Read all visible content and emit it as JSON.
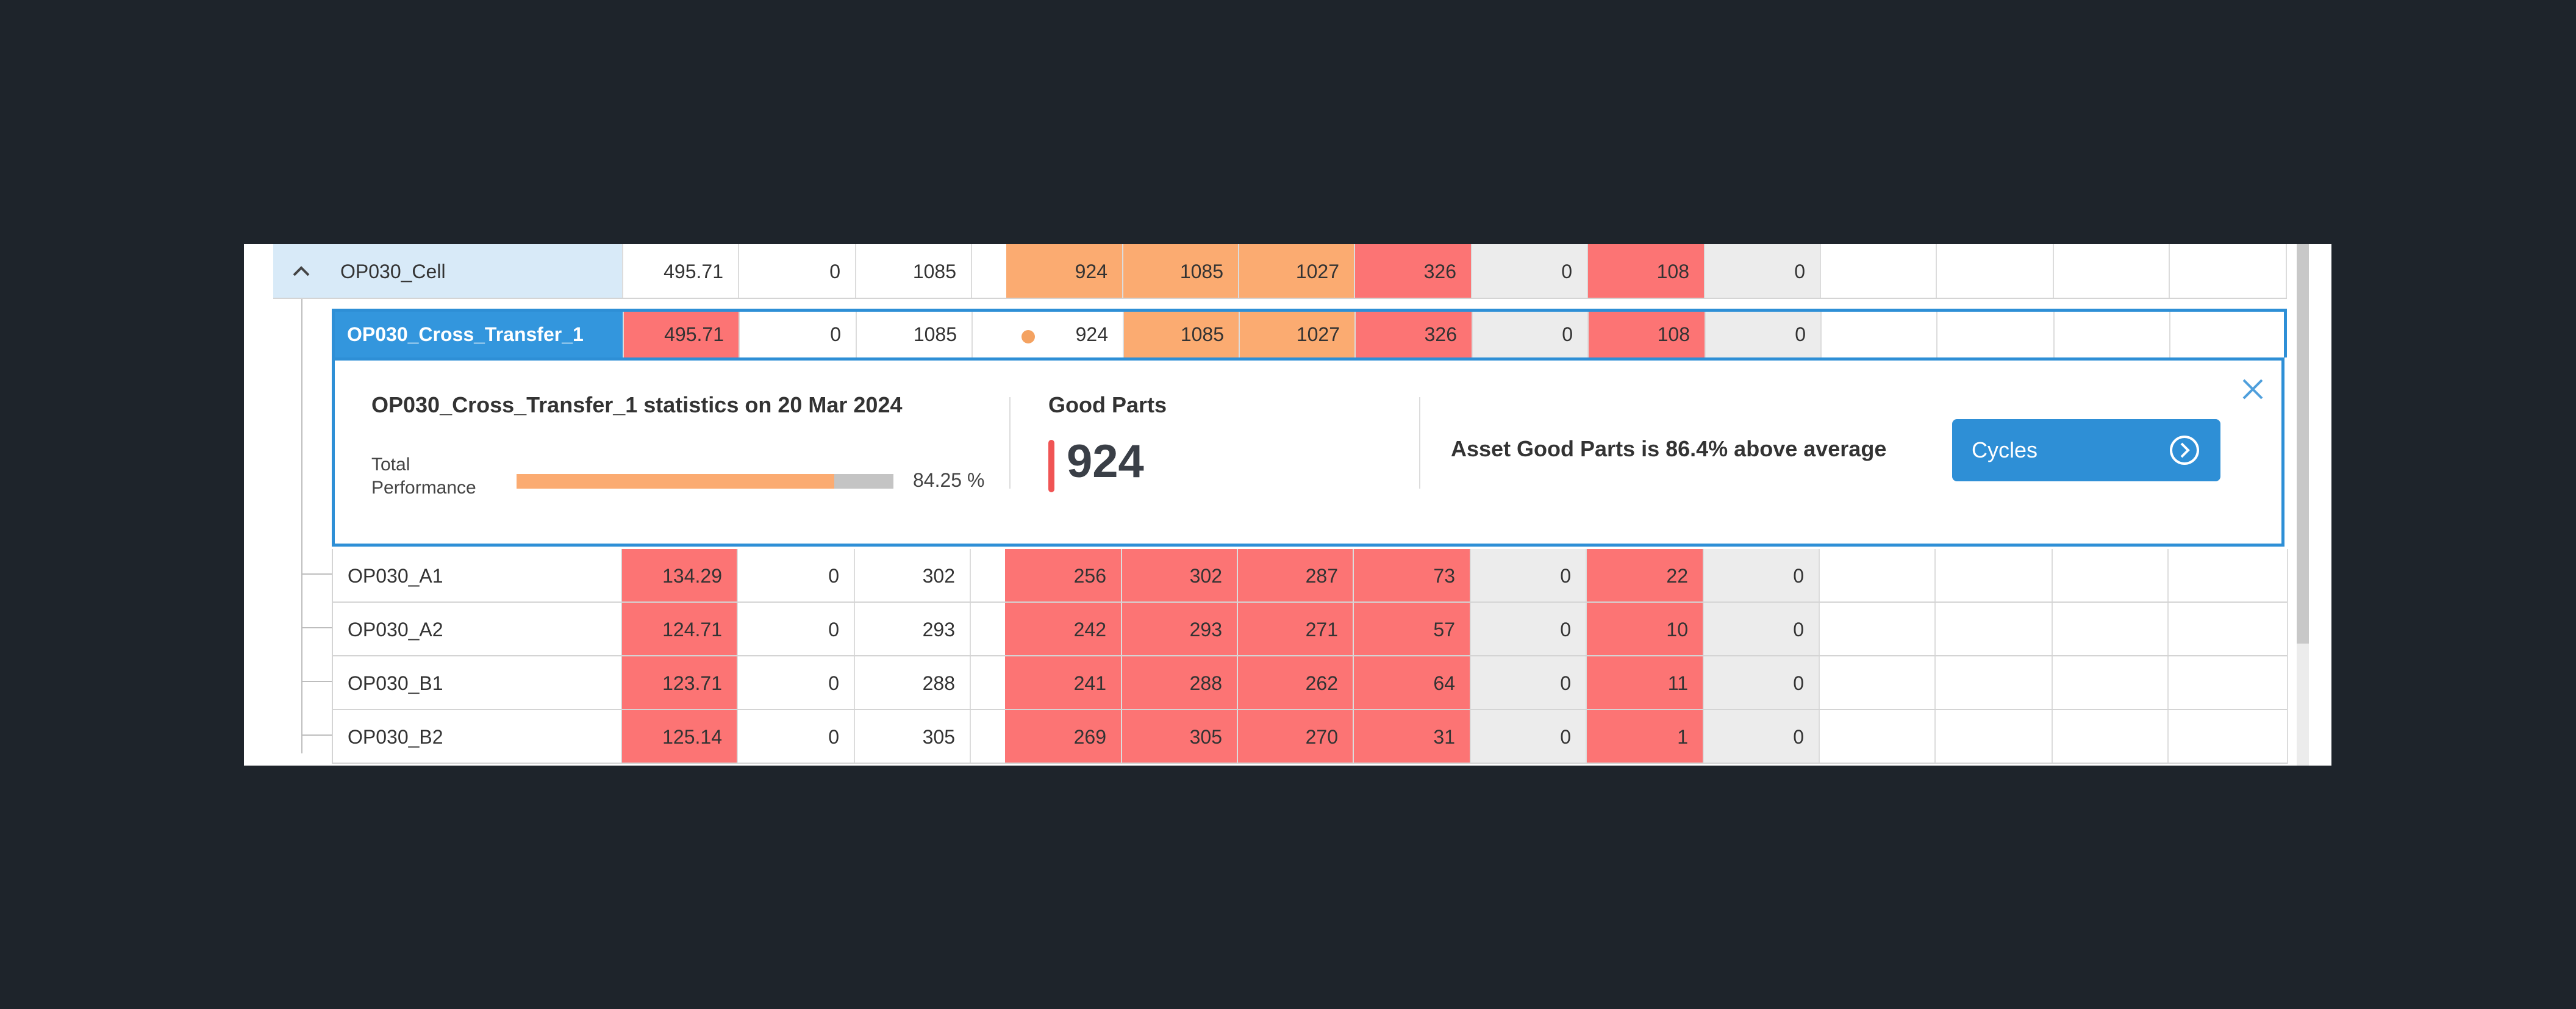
{
  "rows": [
    {
      "name": "OP030_Cell",
      "values": [
        "495.71",
        "0",
        "1085",
        "924",
        "1085",
        "1027",
        "326",
        "0",
        "108",
        "0",
        "",
        "",
        "",
        ""
      ]
    },
    {
      "name": "OP030_Cross_Transfer_1",
      "values": [
        "495.71",
        "0",
        "1085",
        "924",
        "1085",
        "1027",
        "326",
        "0",
        "108",
        "0",
        "",
        "",
        "",
        ""
      ]
    },
    {
      "name": "OP030_A1",
      "values": [
        "134.29",
        "0",
        "302",
        "256",
        "302",
        "287",
        "73",
        "0",
        "22",
        "0",
        "",
        "",
        "",
        ""
      ]
    },
    {
      "name": "OP030_A2",
      "values": [
        "124.71",
        "0",
        "293",
        "242",
        "293",
        "271",
        "57",
        "0",
        "10",
        "0",
        "",
        "",
        "",
        ""
      ]
    },
    {
      "name": "OP030_B1",
      "values": [
        "123.71",
        "0",
        "288",
        "241",
        "288",
        "262",
        "64",
        "0",
        "11",
        "0",
        "",
        "",
        "",
        ""
      ]
    },
    {
      "name": "OP030_B2",
      "values": [
        "125.14",
        "0",
        "305",
        "269",
        "305",
        "270",
        "31",
        "0",
        "1",
        "0",
        "",
        "",
        "",
        ""
      ]
    }
  ],
  "detail": {
    "title": "OP030_Cross_Transfer_1 statistics on 20 Mar 2024",
    "total_performance_label_1": "Total",
    "total_performance_label_2": "Performance",
    "total_performance_value": "84.25 %",
    "total_performance_fraction": 0.8425,
    "good_parts_label": "Good Parts",
    "good_parts_value": "924",
    "insight": "Asset Good Parts is 86.4% above average",
    "cycles_button": "Cycles"
  },
  "colors": {
    "selected_row": "#3396dd",
    "expanded_row": "#d8eaf8",
    "red_cell": "#fc7474",
    "orange_cell": "#fbab71",
    "grey_cell": "#ececec",
    "accent_border": "#2e8fd6",
    "status_dot": "#f4a261"
  },
  "icons": {
    "collapse": "chevron-up-icon",
    "close": "close-icon",
    "cycles": "arrow-right-circle-icon"
  }
}
